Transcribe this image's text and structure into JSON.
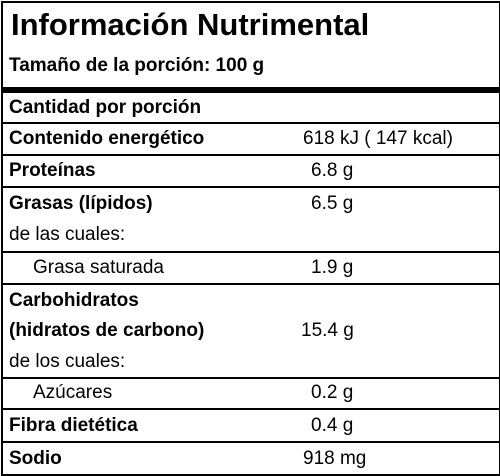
{
  "title": "Información Nutrimental",
  "serving_label": "Tamaño de la porción: 100 g",
  "section_header": "Cantidad por porción",
  "energy": {
    "label": "Contenido energético",
    "value": "618 kJ  ( 147 kcal)"
  },
  "protein": {
    "label": "Proteínas",
    "value": "6.8 g"
  },
  "fat": {
    "label": "Grasas (lípidos)",
    "value": "6.5 g",
    "sub_intro": "de las cuales:",
    "saturated": {
      "label": "Grasa saturada",
      "value": "1.9 g"
    }
  },
  "carbs": {
    "label_line1": "Carbohidratos",
    "label_line2": "(hidratos de carbono)",
    "value": "15.4 g",
    "sub_intro": "de los cuales:",
    "sugars": {
      "label": "Azúcares",
      "value": "0.2 g"
    }
  },
  "fiber": {
    "label": "Fibra dietética",
    "value": "0.4 g"
  },
  "sodium": {
    "label": "Sodio",
    "value": "918 mg"
  }
}
